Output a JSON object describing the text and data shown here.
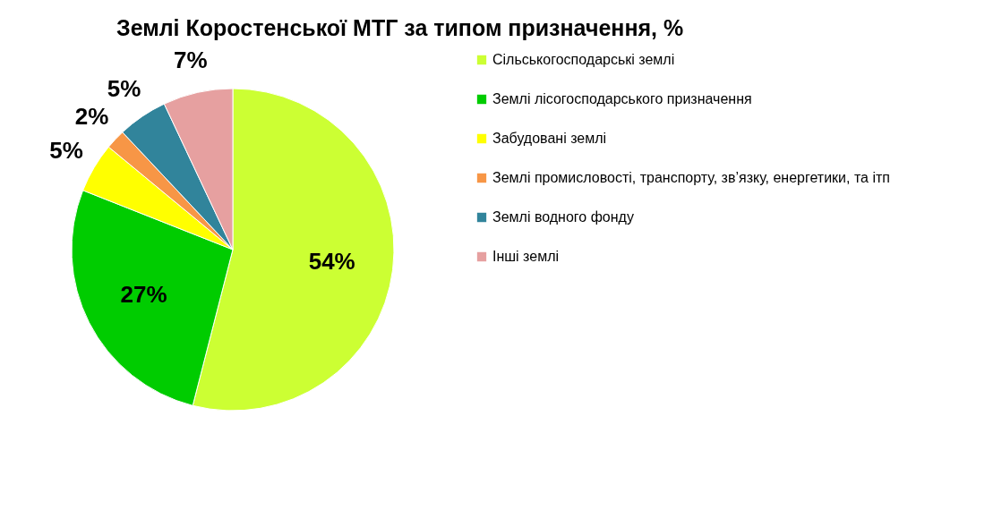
{
  "chart_data": {
    "type": "pie",
    "title": "Землі Коростенської МТГ за типом призначення, %",
    "categories": [
      "Сільськогосподарські землі",
      "Землі лісогосподарського призначення",
      "Забудовані землі",
      "Землі промисловості, транспорту, зв’язку, енергетики, та ітп",
      "Землі водного фонду",
      "Інші землі"
    ],
    "values": [
      54,
      27,
      5,
      2,
      5,
      7
    ],
    "value_labels": [
      "54%",
      "27%",
      "5%",
      "2%",
      "5%",
      "7%"
    ],
    "colors": [
      "#ccff33",
      "#00cc00",
      "#ffff00",
      "#f79646",
      "#31849b",
      "#e6a0a0"
    ],
    "legend": "right"
  }
}
